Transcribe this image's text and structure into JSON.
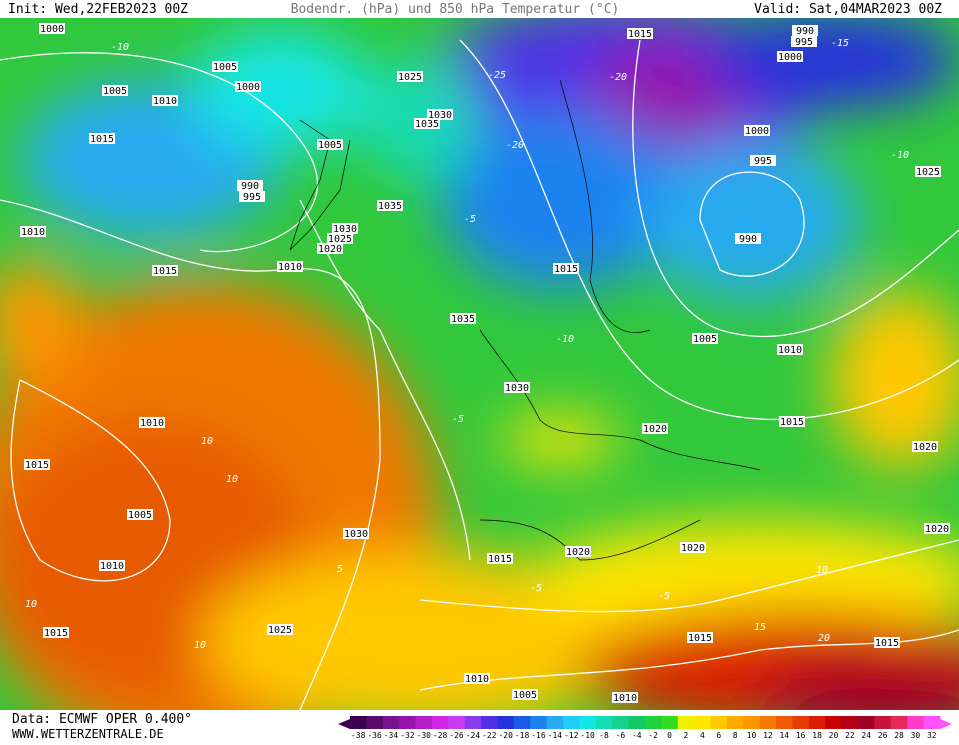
{
  "header": {
    "init": "Init: Wed,22FEB2023 00Z",
    "title": "Bodendr. (hPa) und 850 hPa Temperatur (°C)",
    "valid": "Valid: Sat,04MAR2023 00Z"
  },
  "footer": {
    "data": "Data: ECMWF OPER 0.400°",
    "site": "WWW.WETTERZENTRALE.DE"
  },
  "colorbar": {
    "values": [
      -38,
      -36,
      -34,
      -32,
      -30,
      -28,
      -26,
      -24,
      -22,
      -20,
      -18,
      -16,
      -14,
      -12,
      -10,
      -8,
      -6,
      -4,
      -2,
      0,
      2,
      4,
      6,
      8,
      10,
      12,
      14,
      16,
      18,
      20,
      22,
      24,
      26,
      28,
      30,
      32
    ],
    "colors": [
      "#3c0050",
      "#5a0a6e",
      "#78148c",
      "#9614aa",
      "#b41ec8",
      "#d228e6",
      "#c83cf0",
      "#8c3cf0",
      "#5032e6",
      "#2832dc",
      "#1e5ae6",
      "#1e82f0",
      "#28aaf0",
      "#1ecdf5",
      "#14e6e6",
      "#14dcb4",
      "#14d28c",
      "#14c864",
      "#1ed23c",
      "#32dc1e",
      "#f0f000",
      "#ffe600",
      "#ffc800",
      "#ffaa00",
      "#ff9600",
      "#f57800",
      "#f05a00",
      "#e63c00",
      "#dc1e00",
      "#c80000",
      "#b40014",
      "#a00028",
      "#c8143c",
      "#e6285a",
      "#ff3cc8",
      "#ff50ff"
    ]
  },
  "isobar_labels": [
    1000,
    1005,
    1000,
    1005,
    1010,
    1015,
    1005,
    990,
    995,
    1025,
    1035,
    1030,
    1035,
    1030,
    1025,
    1020,
    1010,
    1010,
    1015,
    1015,
    1000,
    990,
    995,
    1000,
    995,
    990,
    1025,
    1015,
    1035,
    1005,
    1010,
    1030,
    1020,
    1015,
    1010,
    1015,
    1005,
    1020,
    1030,
    1015,
    1020,
    1020,
    1010,
    1020,
    1025,
    1015,
    1015,
    1015,
    1010,
    1005,
    1010
  ],
  "temperature_labels": [
    -10,
    -15,
    -10,
    -25,
    -20,
    -20,
    -5,
    -10,
    -5,
    10,
    10,
    5,
    -5,
    -5,
    15,
    10,
    10,
    10,
    20
  ]
}
